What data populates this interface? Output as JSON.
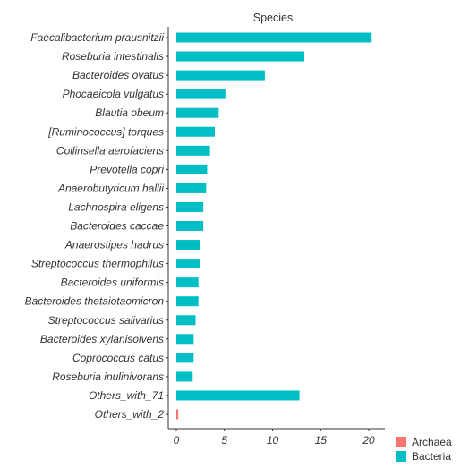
{
  "chart_data": {
    "type": "bar",
    "orientation": "horizontal",
    "title": "Species",
    "xlabel": "",
    "ylabel": "",
    "xlim": [
      0,
      21
    ],
    "xticks": [
      0,
      5,
      10,
      15,
      20
    ],
    "grid": false,
    "legend_position": "bottom-right",
    "colors": {
      "Archaea": "#F8766D",
      "Bacteria": "#00BFC4"
    },
    "categories": [
      "Faecalibacterium prausnitzii",
      "Roseburia intestinalis",
      "Bacteroides ovatus",
      "Phocaeicola vulgatus",
      "Blautia obeum",
      "[Ruminococcus] torques",
      "Collinsella aerofaciens",
      "Prevotella copri",
      "Anaerobutyricum hallii",
      "Lachnospira eligens",
      "Bacteroides caccae",
      "Anaerostipes hadrus",
      "Streptococcus thermophilus",
      "Bacteroides uniformis",
      "Bacteroides thetaiotaomicron",
      "Streptococcus salivarius",
      "Bacteroides xylanisolvens",
      "Coprococcus catus",
      "Roseburia inulinivorans",
      "Others_with_71",
      "Others_with_2"
    ],
    "series": [
      {
        "name": "Archaea",
        "values": [
          0,
          0,
          0,
          0,
          0,
          0,
          0,
          0,
          0,
          0,
          0,
          0,
          0,
          0,
          0,
          0,
          0,
          0,
          0,
          0,
          0.2
        ]
      },
      {
        "name": "Bacteria",
        "values": [
          20.3,
          13.3,
          9.2,
          5.1,
          4.4,
          4.0,
          3.5,
          3.2,
          3.1,
          2.8,
          2.8,
          2.5,
          2.5,
          2.3,
          2.3,
          2.0,
          1.8,
          1.8,
          1.7,
          12.8,
          0
        ]
      }
    ]
  }
}
